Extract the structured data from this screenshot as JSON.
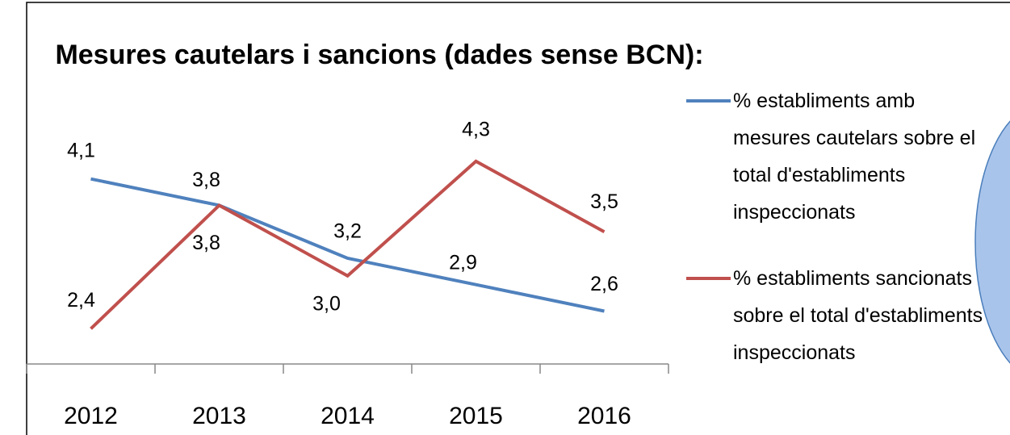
{
  "chart_data": {
    "type": "line",
    "title": "Mesures cautelars i sancions (dades sense BCN):",
    "categories": [
      "2012",
      "2013",
      "2014",
      "2015",
      "2016"
    ],
    "ylim": [
      2,
      4.5
    ],
    "series": [
      {
        "name": "% establiments amb mesures cautelars sobre el total d'establiments inspeccionats",
        "color": "#4f81bd",
        "values": [
          4.1,
          3.8,
          3.2,
          2.9,
          2.6
        ],
        "value_labels": [
          "4,1",
          "3,8",
          "3,2",
          "2,9",
          "2,6"
        ]
      },
      {
        "name": "% establiments sancionats sobre el total d'establiments inspeccionats",
        "color": "#c0504d",
        "values": [
          2.4,
          3.8,
          3.0,
          4.3,
          3.5
        ],
        "value_labels": [
          "2,4",
          "3,8",
          "3,0",
          "4,3",
          "3,5"
        ]
      }
    ]
  }
}
